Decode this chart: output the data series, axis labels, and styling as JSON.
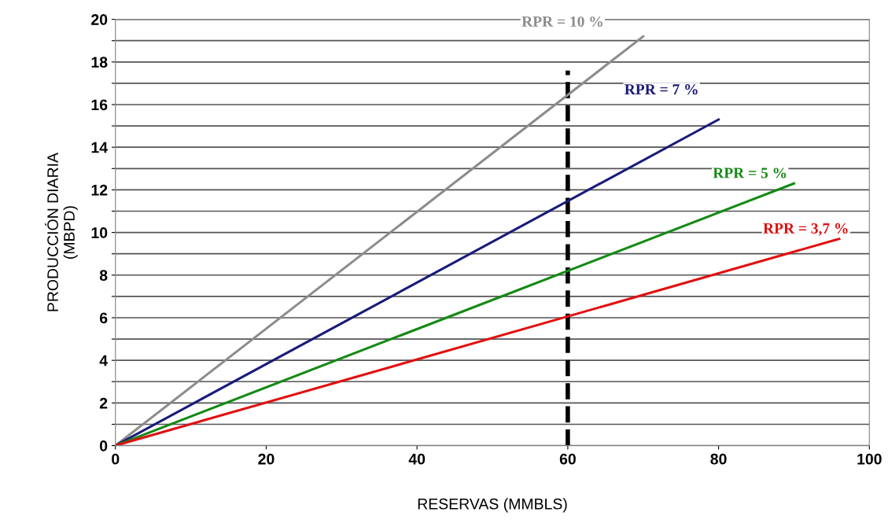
{
  "chart_data": {
    "type": "line",
    "xlabel": "RESERVAS (MMBLS)",
    "ylabel": "PRODUCCIÓN DIARIA\n(MBPD)",
    "series": [
      {
        "name": "RPR = 10 %",
        "color": "#8c8c8c",
        "x": [
          0,
          70
        ],
        "values": [
          0,
          19.2
        ]
      },
      {
        "name": "RPR = 7 %",
        "color": "#1a1a7a",
        "x": [
          0,
          80
        ],
        "values": [
          0,
          15.3
        ]
      },
      {
        "name": "RPR = 5 %",
        "color": "#148a14",
        "x": [
          0,
          90
        ],
        "values": [
          0,
          12.3
        ]
      },
      {
        "name": "RPR = 3,7 %",
        "color": "#e01010",
        "x": [
          0,
          96
        ],
        "values": [
          0,
          9.7
        ]
      }
    ],
    "xlim": [
      0,
      100
    ],
    "xticks": [
      0,
      20,
      40,
      60,
      80,
      100
    ],
    "ylim": [
      0,
      20
    ],
    "yticks": [
      0,
      {
        "value": 1,
        "label": null
      },
      2,
      {
        "value": 3,
        "label": null
      },
      4,
      {
        "value": 5,
        "label": null
      },
      6,
      {
        "value": 7,
        "label": null
      },
      8,
      {
        "value": 9,
        "label": null
      },
      10,
      {
        "value": 11,
        "label": null
      },
      12,
      {
        "value": 13,
        "label": null
      },
      14,
      {
        "value": 15,
        "label": null
      },
      16,
      {
        "value": 17,
        "label": null
      },
      18,
      {
        "value": 19,
        "label": null
      },
      20
    ],
    "grid": "y",
    "legend": false,
    "marker": "none",
    "line_style": "solid",
    "ref_lines": [
      {
        "axis": "x",
        "value": 60,
        "label": null,
        "color": "#000000",
        "line_style": "dashed"
      }
    ]
  }
}
